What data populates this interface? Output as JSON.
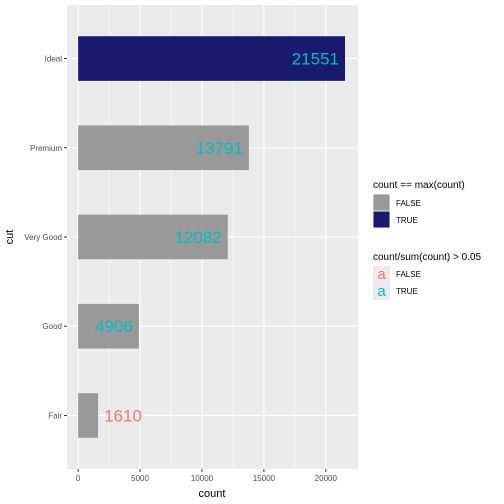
{
  "chart_data": {
    "type": "bar",
    "orientation": "horizontal",
    "categories": [
      "Fair",
      "Good",
      "Very Good",
      "Premium",
      "Ideal"
    ],
    "values": [
      1610,
      4906,
      12082,
      13791,
      21551
    ],
    "data_labels": [
      "1610",
      "4906",
      "12082",
      "13791",
      "21551"
    ],
    "fill_is_max": [
      false,
      false,
      false,
      false,
      true
    ],
    "label_share_gt_5pct": [
      false,
      true,
      true,
      true,
      true
    ],
    "xlabel": "count",
    "ylabel": "cut",
    "xlim": [
      -900,
      22600
    ],
    "x_ticks": [
      0,
      5000,
      10000,
      15000,
      20000
    ],
    "x_tick_labels": [
      "0",
      "5000",
      "10000",
      "15000",
      "20000"
    ],
    "grid": true,
    "legend_position": "right",
    "legends": [
      {
        "title": "count == max(count)",
        "entries": [
          {
            "label": "FALSE",
            "color": "#999999"
          },
          {
            "label": "TRUE",
            "color": "#191970"
          }
        ]
      },
      {
        "title": "count/sum(count) > 0.05",
        "glyph": "a",
        "entries": [
          {
            "label": "FALSE",
            "color": "#f8766d"
          },
          {
            "label": "TRUE",
            "color": "#00bfc4"
          }
        ]
      }
    ],
    "colors": {
      "panel_background": "#ebebeb",
      "grid_major": "#ffffff",
      "bar_false": "#999999",
      "bar_true": "#191970",
      "label_false": "#f8766d",
      "label_true": "#00bfc4"
    }
  }
}
